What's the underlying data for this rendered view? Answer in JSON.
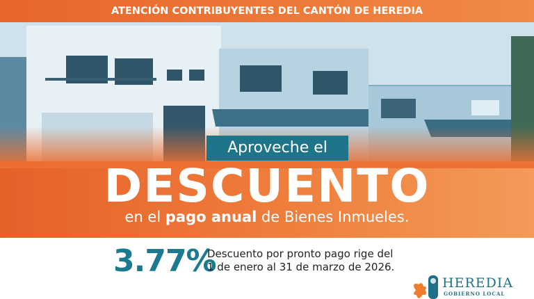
{
  "banner": {
    "title": "ATENCIÓN CONTRIBUYENTES DEL CANTÓN DE HEREDIA"
  },
  "hero": {
    "intro": "Aproveche el",
    "headline": "DESCUENTO",
    "subtitle_pre": "en el ",
    "subtitle_bold": "pago anual",
    "subtitle_post": " de Bienes Inmueles."
  },
  "details": {
    "percentage": "3.77%",
    "line1": "Descuento por pronto pago rige del",
    "line2": "1 de enero al 31 de marzo de 2026."
  },
  "logo": {
    "name": "HEREDIA",
    "tagline": "GOBIERNO LOCAL"
  },
  "colors": {
    "orange": "#e8652a",
    "teal": "#1b7a8e"
  }
}
